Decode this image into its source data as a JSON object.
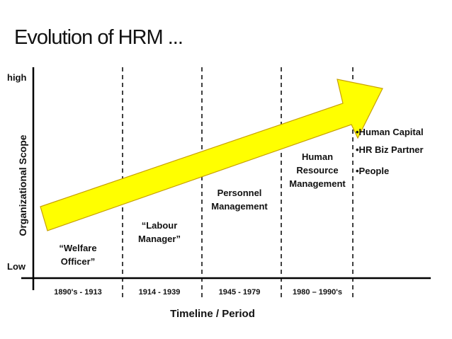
{
  "title": "Evolution of HRM ...",
  "axis": {
    "high": "high",
    "low": "Low",
    "y_label": "Organizational Scope",
    "x_label": "Timeline / Period"
  },
  "stages": [
    {
      "label": [
        "“Welfare",
        "Officer”"
      ],
      "period": "1890's - 1913"
    },
    {
      "label": [
        "“Labour",
        "Manager”"
      ],
      "period": "1914 - 1939"
    },
    {
      "label": [
        "Personnel",
        "Management"
      ],
      "period": "1945 - 1979"
    },
    {
      "label": [
        "Human",
        "Resource",
        "Management"
      ],
      "period": "1980 – 1990's"
    }
  ],
  "bullets": [
    "•Human Capital",
    "•HR Biz Partner",
    "•People"
  ]
}
